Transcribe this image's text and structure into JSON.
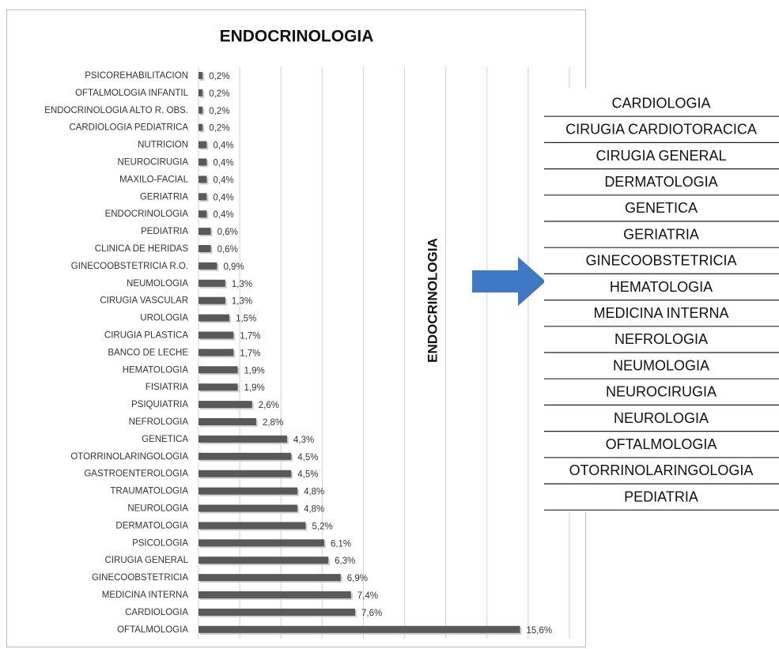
{
  "chart_data": {
    "type": "bar",
    "orientation": "horizontal",
    "title": "ENDOCRINOLOGIA",
    "categories": [
      "PSICOREHABILITACION",
      "OFTALMOLOGIA INFANTIL",
      "ENDOCRINOLOGIA ALTO R. OBS.",
      "CARDIOLOGIA PEDIATRICA",
      "NUTRICION",
      "NEUROCIRUGIA",
      "MAXILO-FACIAL",
      "GERIATRIA",
      "ENDOCRINOLOGIA",
      "PEDIATRIA",
      "CLINICA DE HERIDAS",
      "GINECOOBSTETRICIA R.O.",
      "NEUMOLOGIA",
      "CIRUGIA VASCULAR",
      "UROLOGIA",
      "CIRUGIA PLASTICA",
      "BANCO DE LECHE",
      "HEMATOLOGIA",
      "FISIATRIA",
      "PSIQUIATRIA",
      "NEFROLOGIA",
      "GENETICA",
      "OTORRINOLARINGOLOGIA",
      "GASTROENTEROLOGIA",
      "TRAUMATOLOGIA",
      "NEUROLOGIA",
      "DERMATOLOGIA",
      "PSICOLOGIA",
      "CIRUGIA GENERAL",
      "GINECOOBSTETRICIA",
      "MEDICINA INTERNA",
      "CARDIOLOGIA",
      "OFTALMOLOGIA"
    ],
    "values": [
      0.2,
      0.2,
      0.2,
      0.2,
      0.4,
      0.4,
      0.4,
      0.4,
      0.4,
      0.6,
      0.6,
      0.9,
      1.3,
      1.3,
      1.5,
      1.7,
      1.7,
      1.9,
      1.9,
      2.6,
      2.8,
      4.3,
      4.5,
      4.5,
      4.8,
      4.8,
      5.2,
      6.1,
      6.3,
      6.9,
      7.4,
      7.6,
      15.6
    ],
    "value_labels": [
      "0,2%",
      "0,2%",
      "0,2%",
      "0,2%",
      "0,4%",
      "0,4%",
      "0,4%",
      "0,4%",
      "0,4%",
      "0,6%",
      "0,6%",
      "0,9%",
      "1,3%",
      "1,3%",
      "1,5%",
      "1,7%",
      "1,7%",
      "1,9%",
      "1,9%",
      "2,6%",
      "2,8%",
      "4,3%",
      "4,5%",
      "4,5%",
      "4,8%",
      "4,8%",
      "5,2%",
      "6,1%",
      "6,3%",
      "6,9%",
      "7,4%",
      "7,6%",
      "15,6%"
    ],
    "color": "#595959",
    "xlim": [
      0,
      18
    ],
    "xticks": [
      0,
      2,
      4,
      6,
      8,
      10,
      12,
      14,
      16,
      18
    ],
    "grid": true,
    "annotation": "ENDOCRINOLOGIA"
  },
  "list": [
    "CARDIOLOGIA",
    "CIRUGIA CARDIOTORACICA",
    "CIRUGIA GENERAL",
    "DERMATOLOGIA",
    "GENETICA",
    "GERIATRIA",
    "GINECOOBSTETRICIA",
    "HEMATOLOGIA",
    "MEDICINA INTERNA",
    "NEFROLOGIA",
    "NEUMOLOGIA",
    "NEUROCIRUGIA",
    "NEUROLOGIA",
    "OFTALMOLOGIA",
    "OTORRINOLARINGOLOGIA",
    "PEDIATRIA"
  ]
}
